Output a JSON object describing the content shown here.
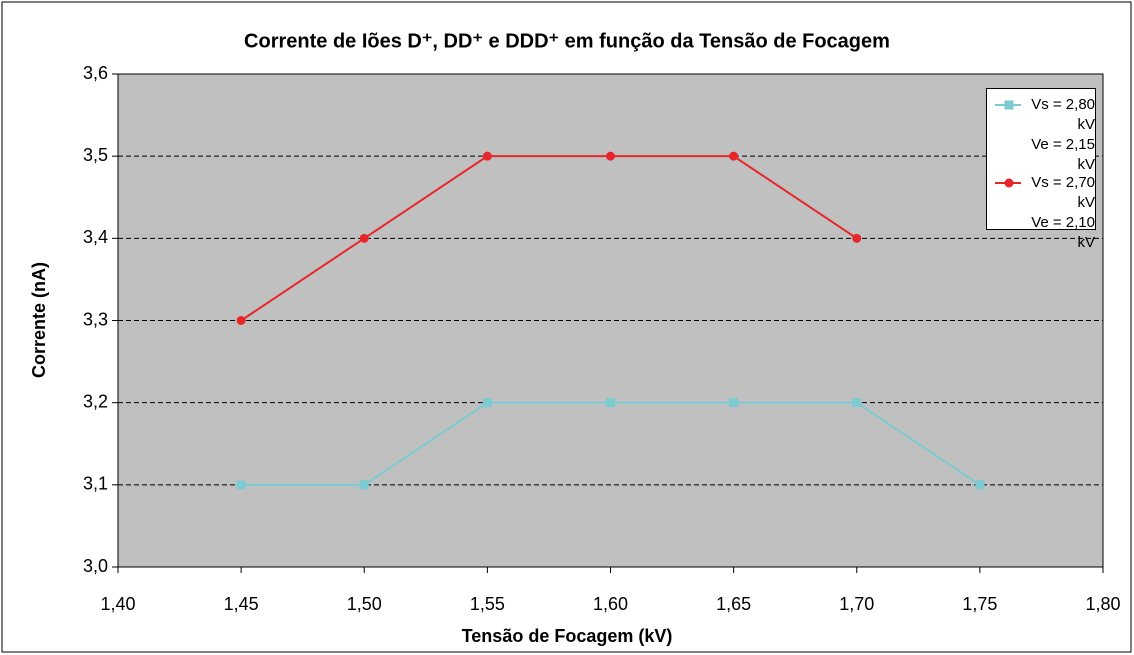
{
  "chart_data": {
    "type": "line",
    "title": "Corrente de Iões D⁺, DD⁺ e DDD⁺ em função da Tensão de Focagem",
    "x_label": "Tensão de Focagem (kV)",
    "y_label": "Corrente (nA)",
    "series": [
      {
        "name": "Vs = 2,80 kV\nVe = 2,15 kV",
        "color": "#7ccbd3",
        "marker": "square",
        "x": [
          1.45,
          1.5,
          1.55,
          1.6,
          1.65,
          1.7,
          1.75
        ],
        "values": [
          3.1,
          3.1,
          3.2,
          3.2,
          3.2,
          3.2,
          3.1
        ]
      },
      {
        "name": "Vs = 2,70 kV\nVe = 2,10 kV",
        "color": "#e8262a",
        "marker": "circle",
        "x": [
          1.45,
          1.5,
          1.55,
          1.6,
          1.65,
          1.7
        ],
        "values": [
          3.3,
          3.4,
          3.5,
          3.5,
          3.5,
          3.4
        ]
      }
    ],
    "xlim": [
      1.4,
      1.8
    ],
    "xticks": [
      {
        "value": 1.4,
        "label": "1,40"
      },
      {
        "value": 1.45,
        "label": "1,45"
      },
      {
        "value": 1.5,
        "label": "1,50"
      },
      {
        "value": 1.55,
        "label": "1,55"
      },
      {
        "value": 1.6,
        "label": "1,60"
      },
      {
        "value": 1.65,
        "label": "1,65"
      },
      {
        "value": 1.7,
        "label": "1,70"
      },
      {
        "value": 1.75,
        "label": "1,75"
      },
      {
        "value": 1.8,
        "label": "1,80"
      }
    ],
    "ylim": [
      3.0,
      3.6
    ],
    "yticks": [
      {
        "value": 3.0,
        "label": "3,0"
      },
      {
        "value": 3.1,
        "label": "3,1"
      },
      {
        "value": 3.2,
        "label": "3,2"
      },
      {
        "value": 3.3,
        "label": "3,3"
      },
      {
        "value": 3.4,
        "label": "3,4"
      },
      {
        "value": 3.5,
        "label": "3,5"
      },
      {
        "value": 3.6,
        "label": "3,6"
      }
    ],
    "grid": true,
    "plot_background": "#c0c0c0",
    "legend": "upper right"
  }
}
